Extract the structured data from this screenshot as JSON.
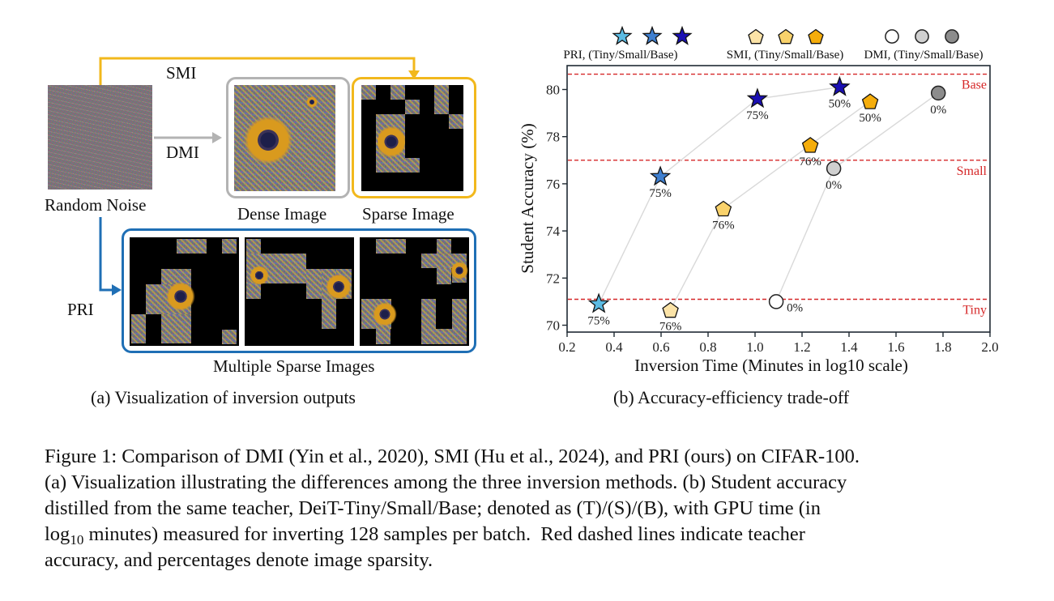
{
  "panel_a": {
    "labels": {
      "random_noise": "Random Noise",
      "dense_image": "Dense Image",
      "sparse_image": "Sparse Image",
      "multiple_sparse_images": "Multiple Sparse Images",
      "smi": "SMI",
      "dmi": "DMI",
      "pri": "PRI"
    },
    "colors": {
      "smi": "#f2b81c",
      "dmi": "#b3b3b3",
      "pri": "#1f6fb5"
    },
    "subcaption": "(a) Visualization of inversion outputs"
  },
  "panel_b": {
    "subcaption": "(b) Accuracy-efficiency trade-off"
  },
  "chart_data": {
    "type": "scatter",
    "title": "",
    "xlabel": "Inversion Time (Minutes in log10 scale)",
    "ylabel": "Student Accuracy (%)",
    "xlim": [
      0.2,
      2.0
    ],
    "ylim": [
      69.8,
      81.0
    ],
    "xticks": [
      0.2,
      0.4,
      0.6,
      0.8,
      1.0,
      1.2,
      1.4,
      1.6,
      1.8,
      2.0
    ],
    "xtick_labels": [
      "0.2",
      "0.4",
      "0.6",
      "0.8",
      "1.0",
      "1.2",
      "1.4",
      "1.6",
      "1.8",
      "2.0"
    ],
    "yticks": [
      70,
      72,
      74,
      76,
      78,
      80
    ],
    "ytick_labels": [
      "70",
      "72",
      "74",
      "76",
      "78",
      "80"
    ],
    "grid": false,
    "legend_position": "top",
    "legend": [
      {
        "label": "PRI, (Tiny/Small/Base)",
        "marker": "star",
        "colors": [
          "#5bbbe3",
          "#3f7fcf",
          "#1a0fb3"
        ]
      },
      {
        "label": "SMI, (Tiny/Small/Base)",
        "marker": "pentagon",
        "colors": [
          "#fbe3a7",
          "#f9d26b",
          "#f5ad0b"
        ]
      },
      {
        "label": "DMI, (Tiny/Small/Base)",
        "marker": "circle",
        "colors": [
          "#ffffff",
          "#d0d0d0",
          "#8c8c8c"
        ]
      }
    ],
    "reference_lines": [
      {
        "label": "Base",
        "y": 80.65,
        "color": "#d62728"
      },
      {
        "label": "Small",
        "y": 77.0,
        "color": "#d62728"
      },
      {
        "label": "Tiny",
        "y": 71.1,
        "color": "#d62728"
      }
    ],
    "series": [
      {
        "name": "PRI",
        "marker": "star",
        "points": [
          {
            "x": 0.335,
            "y": 70.9,
            "size": "Tiny",
            "color": "#5bbbe3",
            "label": "75%"
          },
          {
            "x": 0.597,
            "y": 76.3,
            "size": "Small",
            "color": "#3f7fcf",
            "label": "75%"
          },
          {
            "x": 1.01,
            "y": 79.6,
            "size": "Base",
            "color": "#1a0fb3",
            "label": "75%"
          },
          {
            "x": 1.36,
            "y": 80.1,
            "size": "Base",
            "color": "#1a0fb3",
            "label": "50%"
          }
        ]
      },
      {
        "name": "SMI",
        "marker": "pentagon",
        "points": [
          {
            "x": 0.64,
            "y": 70.65,
            "size": "Tiny",
            "color": "#fbe3a7",
            "label": "76%"
          },
          {
            "x": 0.865,
            "y": 74.95,
            "size": "Small",
            "color": "#f9d26b",
            "label": "76%"
          },
          {
            "x": 1.235,
            "y": 77.65,
            "size": "Base",
            "color": "#f5ad0b",
            "label": "76%"
          },
          {
            "x": 1.49,
            "y": 79.5,
            "size": "Base",
            "color": "#f5ad0b",
            "label": "50%"
          }
        ]
      },
      {
        "name": "DMI",
        "marker": "circle",
        "points": [
          {
            "x": 1.09,
            "y": 71.0,
            "size": "Tiny",
            "color": "#ffffff",
            "label": "0%"
          },
          {
            "x": 1.335,
            "y": 76.65,
            "size": "Small",
            "color": "#d0d0d0",
            "label": "0%"
          },
          {
            "x": 1.78,
            "y": 79.85,
            "size": "Base",
            "color": "#8c8c8c",
            "label": "0%"
          }
        ]
      }
    ]
  },
  "figure_caption": {
    "line1": "Figure 1: Comparison of DMI (Yin et al., 2020), SMI (Hu et al., 2024), and PRI (ours) on CIFAR-100.",
    "line2": "(a) Visualization illustrating the differences among the three inversion methods. (b) Student accuracy",
    "line3": "distilled from the same teacher, DeiT-Tiny/Small/Base; denoted as (T)/(S)/(B), with GPU time (in",
    "line4_log": "log",
    "line4_sub": "10",
    "line4_rest": " minutes) measured for inverting 128 samples per batch.  Red dashed lines indicate teacher",
    "line5": "accuracy, and percentages denote image sparsity."
  }
}
